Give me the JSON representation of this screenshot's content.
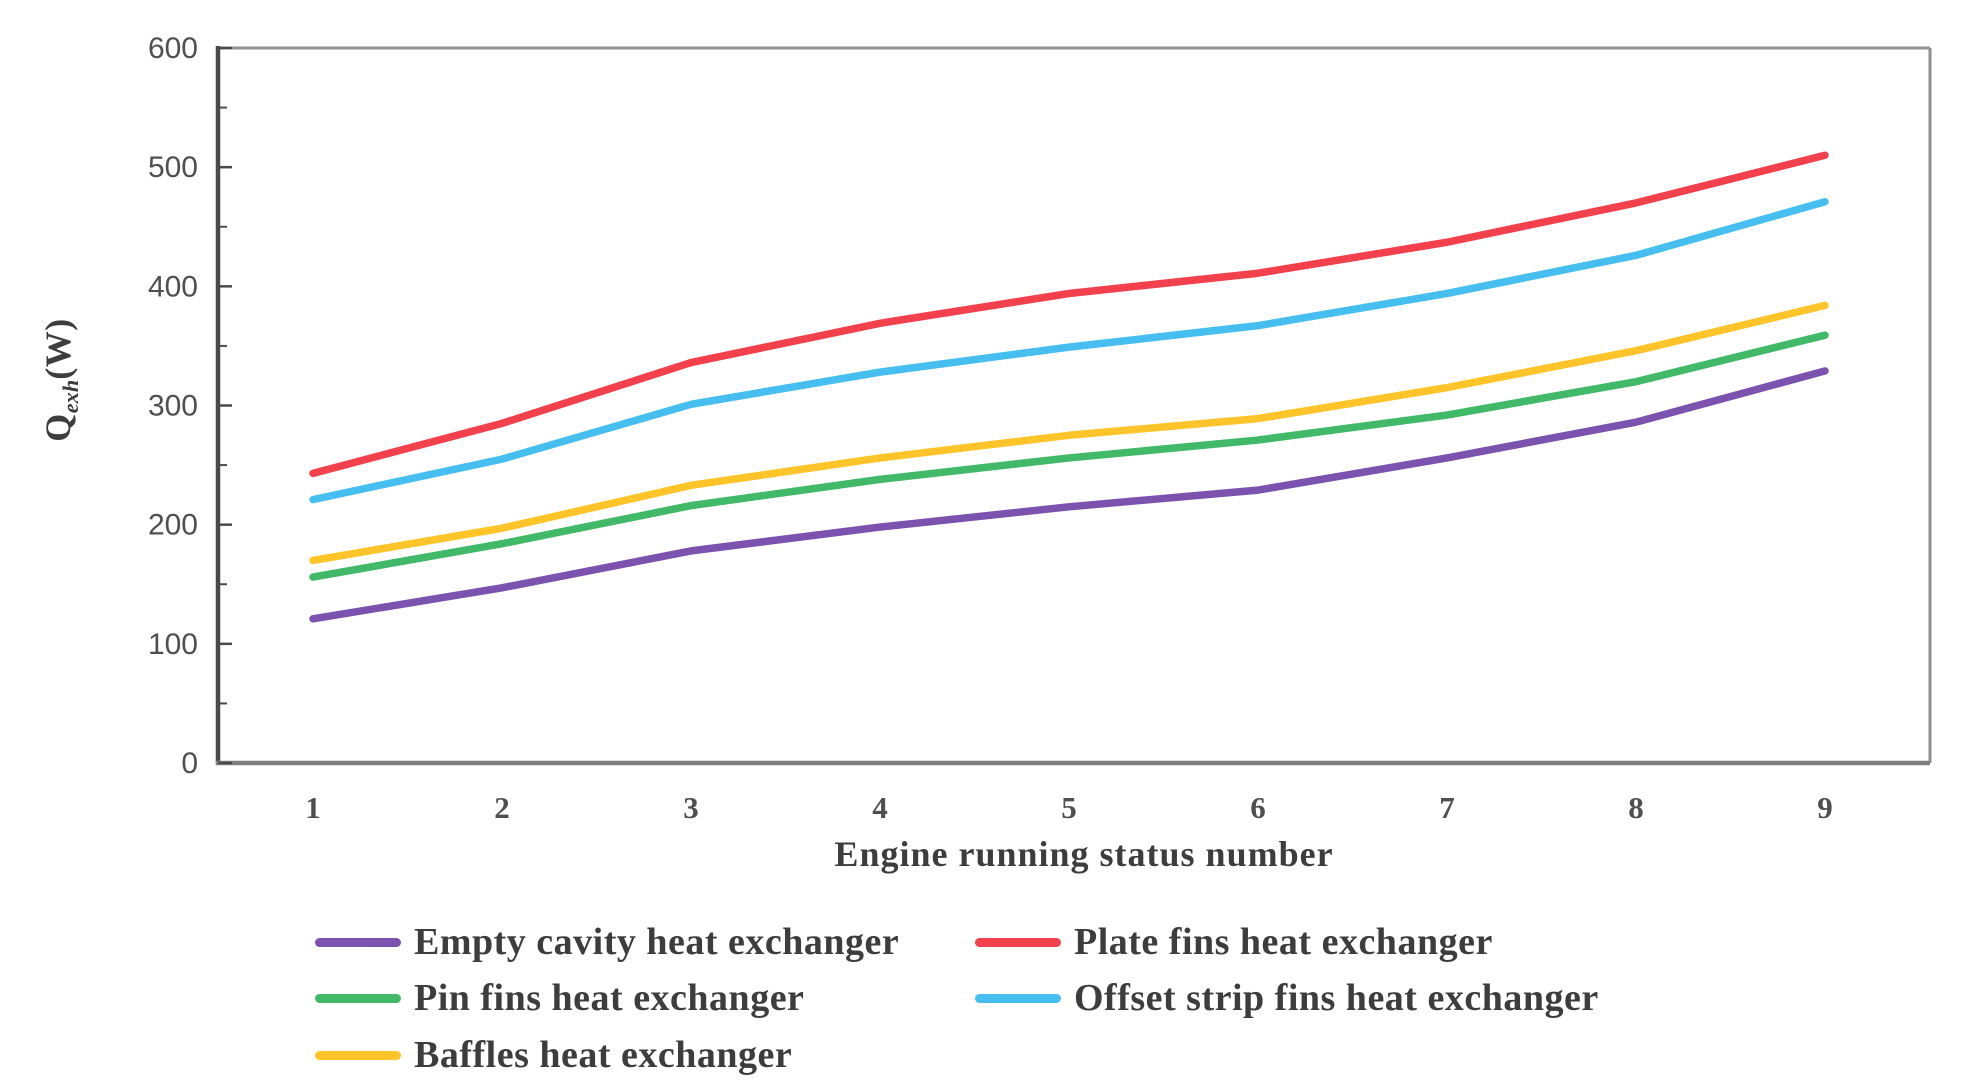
{
  "figure": {
    "y_axis_title": {
      "base": "Q",
      "subscript": "exh",
      "unit": "(W)"
    },
    "x_axis_title": "Engine running status number"
  },
  "chart_data": {
    "type": "line",
    "title": "",
    "xlabel": "Engine running status number",
    "ylabel": "Qexh(W)",
    "x": [
      1,
      2,
      3,
      4,
      5,
      6,
      7,
      8,
      9
    ],
    "x_tick_labels": [
      "1",
      "2",
      "3",
      "4",
      "5",
      "6",
      "7",
      "8",
      "9"
    ],
    "y_tick_labels": [
      "0",
      "100",
      "200",
      "300",
      "400",
      "500",
      "600"
    ],
    "xlim": [
      1,
      9
    ],
    "ylim": [
      0,
      600
    ],
    "y_tick_interval": 100,
    "y_minor_tick_interval": 50,
    "grid": false,
    "legend_position": "bottom, two columns",
    "series": [
      {
        "name": "Empty cavity heat exchanger",
        "color": "#7B52AE",
        "values": [
          121,
          147,
          178,
          198,
          215,
          229,
          256,
          286,
          329
        ]
      },
      {
        "name": "Plate fins heat exchanger",
        "color": "#F2414C",
        "values": [
          243,
          285,
          336,
          369,
          394,
          411,
          437,
          470,
          510
        ]
      },
      {
        "name": "Pin fins heat exchanger",
        "color": "#42B969",
        "values": [
          156,
          184,
          216,
          238,
          256,
          271,
          292,
          320,
          359
        ]
      },
      {
        "name": "Offset strip fins heat exchanger",
        "color": "#47BEF0",
        "values": [
          221,
          255,
          301,
          328,
          349,
          367,
          394,
          426,
          471
        ]
      },
      {
        "name": "Baffles heat exchanger",
        "color": "#FFC42A",
        "values": [
          170,
          197,
          233,
          256,
          275,
          289,
          315,
          346,
          384
        ]
      }
    ],
    "axis_colors": {
      "left_axis": "#4a4a4a",
      "bottom_axis": "#808080",
      "box_border": "#8f8f8f",
      "tick": "#4a4a4a",
      "tick_text": "#4f4f4f"
    }
  }
}
